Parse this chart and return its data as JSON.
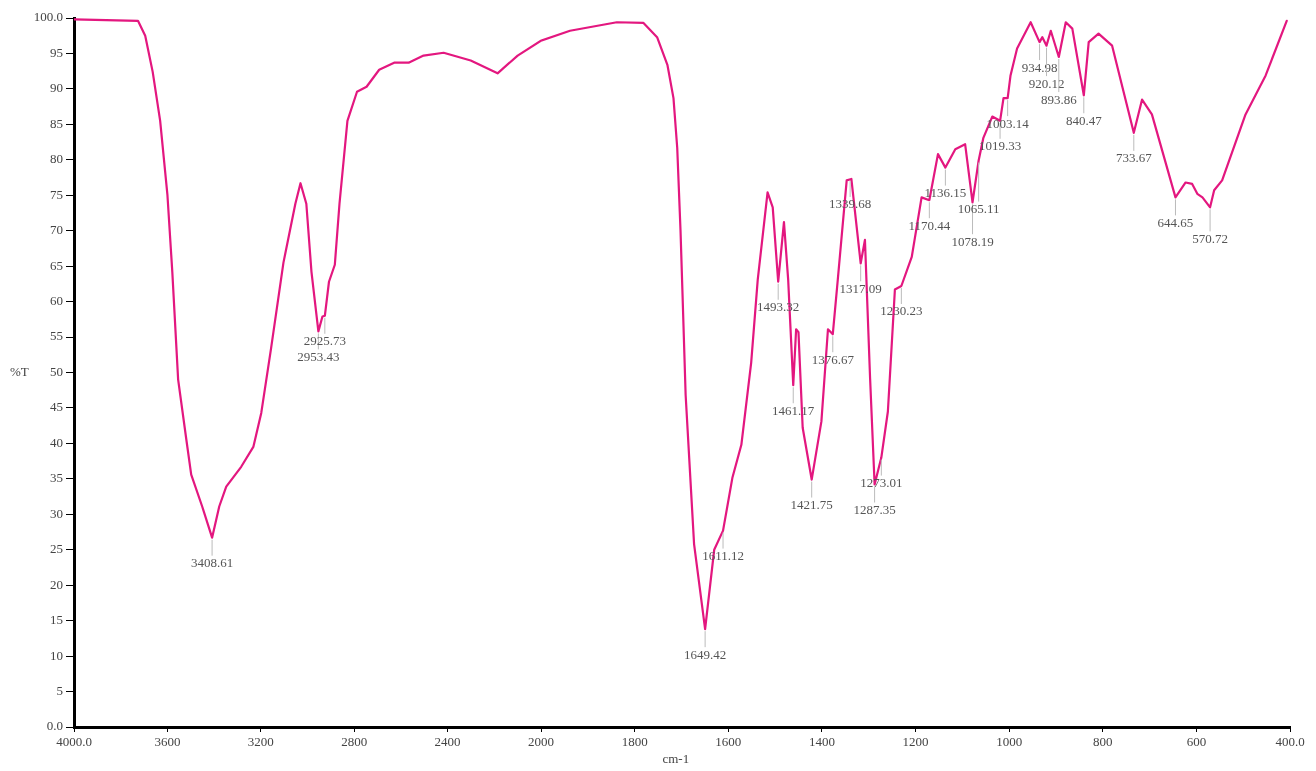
{
  "chart_data": [
    {
      "type": "line",
      "ylabel": "%T",
      "grid": false,
      "legend": false,
      "line_style": "solid",
      "xlim": [
        4000,
        2000
      ],
      "ylim": [
        0,
        100
      ],
      "xticks": [
        {
          "value": 4000,
          "label": "4000.0"
        },
        3600,
        3200,
        2800,
        2400,
        2000
      ],
      "yticks": [
        {
          "value": 0,
          "label": "0.0"
        },
        5,
        10,
        15,
        20,
        25,
        30,
        35,
        40,
        45,
        50,
        55,
        60,
        65,
        70,
        75,
        80,
        85,
        90,
        95,
        {
          "value": 100,
          "label": "100.0"
        }
      ],
      "series": [
        {
          "color": "#e3177f",
          "x": [
            4000,
            3726,
            3695,
            3663,
            3631,
            3600,
            3579,
            3554,
            3520,
            3498,
            3451,
            3408.61,
            3378,
            3348,
            3284,
            3232,
            3198,
            3157,
            3103,
            3052,
            3030,
            3005,
            2983,
            2953.43,
            2936,
            2925.73,
            2908,
            2883,
            2863,
            2829,
            2788,
            2747,
            2693,
            2629,
            2567,
            2503,
            2417,
            2301,
            2186,
            2100,
            2000
          ],
          "values": [
            99.8,
            99.6,
            97.5,
            92.4,
            85.5,
            75.1,
            64.2,
            49,
            40.8,
            35.6,
            31.1,
            26.7,
            31.1,
            33.9,
            36.7,
            39.5,
            44.3,
            53.2,
            65.5,
            73.8,
            76.7,
            73.8,
            64.2,
            55.8,
            57.9,
            58,
            62.8,
            65.2,
            73.8,
            85.5,
            89.6,
            90.3,
            92.7,
            93.7,
            93.7,
            94.7,
            95.1,
            94,
            92.2,
            94.7,
            96.8
          ]
        }
      ],
      "annotations": [
        {
          "text": "3408.61",
          "x": 3408.61,
          "y": 26.7
        },
        {
          "text": "2953.43",
          "x": 2953.43,
          "y": 55.8
        },
        {
          "text": "2925.73",
          "x": 2925.73,
          "y": 58
        }
      ]
    },
    {
      "type": "line",
      "xlabel": "cm-1",
      "grid": false,
      "legend": false,
      "line_style": "solid",
      "tick_labels": "x",
      "xlim": [
        2000,
        400
      ],
      "ylim": [
        0,
        100
      ],
      "xticks": [
        1800,
        1600,
        1400,
        1200,
        1000,
        800,
        600,
        {
          "value": 400,
          "label": "400.0"
        }
      ],
      "series": [
        {
          "color": "#e3177f",
          "x": [
            2000,
            1938,
            1838,
            1781,
            1752,
            1730,
            1717,
            1709,
            1702,
            1698,
            1691,
            1673,
            1649.42,
            1630,
            1611.12,
            1591,
            1572,
            1551,
            1537,
            1516,
            1505,
            1493.32,
            1481,
            1472,
            1461.17,
            1455,
            1450,
            1441,
            1421.75,
            1401,
            1387,
            1376.67,
            1366,
            1347,
            1337,
            1317.09,
            1308,
            1297,
            1287.35,
            1273.01,
            1259,
            1244,
            1230.23,
            1208,
            1187,
            1170.44,
            1152,
            1136.15,
            1115,
            1094,
            1078.19,
            1065.11,
            1055,
            1036,
            1019.33,
            1012,
            1003.14,
            997,
            983,
            954,
            934.98,
            929,
            920.12,
            911,
            893.86,
            879,
            865,
            840.47,
            830,
            809,
            780,
            759,
            733.67,
            716,
            695,
            673,
            644.65,
            623,
            609,
            598,
            587,
            570.72,
            562,
            545,
            495,
            452,
            407
          ],
          "values": [
            96.8,
            98.2,
            99.4,
            99.3,
            97.3,
            93.4,
            88.7,
            81.7,
            70.1,
            61.7,
            46.8,
            25.8,
            13.8,
            25,
            27.7,
            35.2,
            39.8,
            51.4,
            63.1,
            75.4,
            73.3,
            62.8,
            71.2,
            63.1,
            48.2,
            56.1,
            55.7,
            42.2,
            34.9,
            43.1,
            56.1,
            55.4,
            63.1,
            77.1,
            77.3,
            65.4,
            68.7,
            49.2,
            34.2,
            38,
            44.5,
            61.7,
            62.2,
            66.3,
            74.7,
            74.3,
            80.8,
            78.9,
            81.5,
            82.2,
            74,
            79.9,
            83.1,
            86.1,
            85.5,
            88.7,
            88.7,
            91.9,
            95.7,
            99.4,
            96.6,
            97.3,
            96.1,
            98.2,
            94.5,
            99.4,
            98.5,
            89.1,
            96.6,
            97.8,
            96.1,
            90.5,
            83.8,
            88.5,
            86.4,
            81.3,
            74.7,
            76.8,
            76.6,
            75.2,
            74.7,
            73.3,
            75.7,
            77.1,
            86.4,
            91.9,
            99.6
          ]
        }
      ],
      "annotations": [
        {
          "text": "1649.42",
          "x": 1649.42,
          "y": 13.8
        },
        {
          "text": "1611.12",
          "x": 1611.12,
          "y": 27.7
        },
        {
          "text": "1493.32",
          "x": 1493.32,
          "y": 62.8
        },
        {
          "text": "1461.17",
          "x": 1461.17,
          "y": 48.2
        },
        {
          "text": "1421.75",
          "x": 1421.75,
          "y": 34.9
        },
        {
          "text": "1376.67",
          "x": 1376.67,
          "y": 55.4
        },
        {
          "text": "1339.68",
          "x": 1339.68,
          "y": 77.3
        },
        {
          "text": "1317.09",
          "x": 1317.09,
          "y": 65.4
        },
        {
          "text": "1287.35",
          "x": 1287.35,
          "y": 34.2
        },
        {
          "text": "1273.01",
          "x": 1273.01,
          "y": 38
        },
        {
          "text": "1230.23",
          "x": 1230.23,
          "y": 62.2
        },
        {
          "text": "1170.44",
          "x": 1170.44,
          "y": 74.3
        },
        {
          "text": "1136.15",
          "x": 1136.15,
          "y": 78.9
        },
        {
          "text": "1078.19",
          "x": 1078.19,
          "y": 74
        },
        {
          "text": "1065.11",
          "x": 1065.11,
          "y": 79.9
        },
        {
          "text": "1019.33",
          "x": 1019.33,
          "y": 85.5
        },
        {
          "text": "1003.14",
          "x": 1003.14,
          "y": 88.7
        },
        {
          "text": "934.98",
          "x": 934.98,
          "y": 96.6
        },
        {
          "text": "920.12",
          "x": 920.12,
          "y": 96.1
        },
        {
          "text": "893.86",
          "x": 893.86,
          "y": 94.5
        },
        {
          "text": "840.47",
          "x": 840.47,
          "y": 89.1
        },
        {
          "text": "733.67",
          "x": 733.67,
          "y": 83.8
        },
        {
          "text": "644.65",
          "x": 644.65,
          "y": 74.7
        },
        {
          "text": "570.72",
          "x": 570.72,
          "y": 73.3
        }
      ]
    }
  ]
}
